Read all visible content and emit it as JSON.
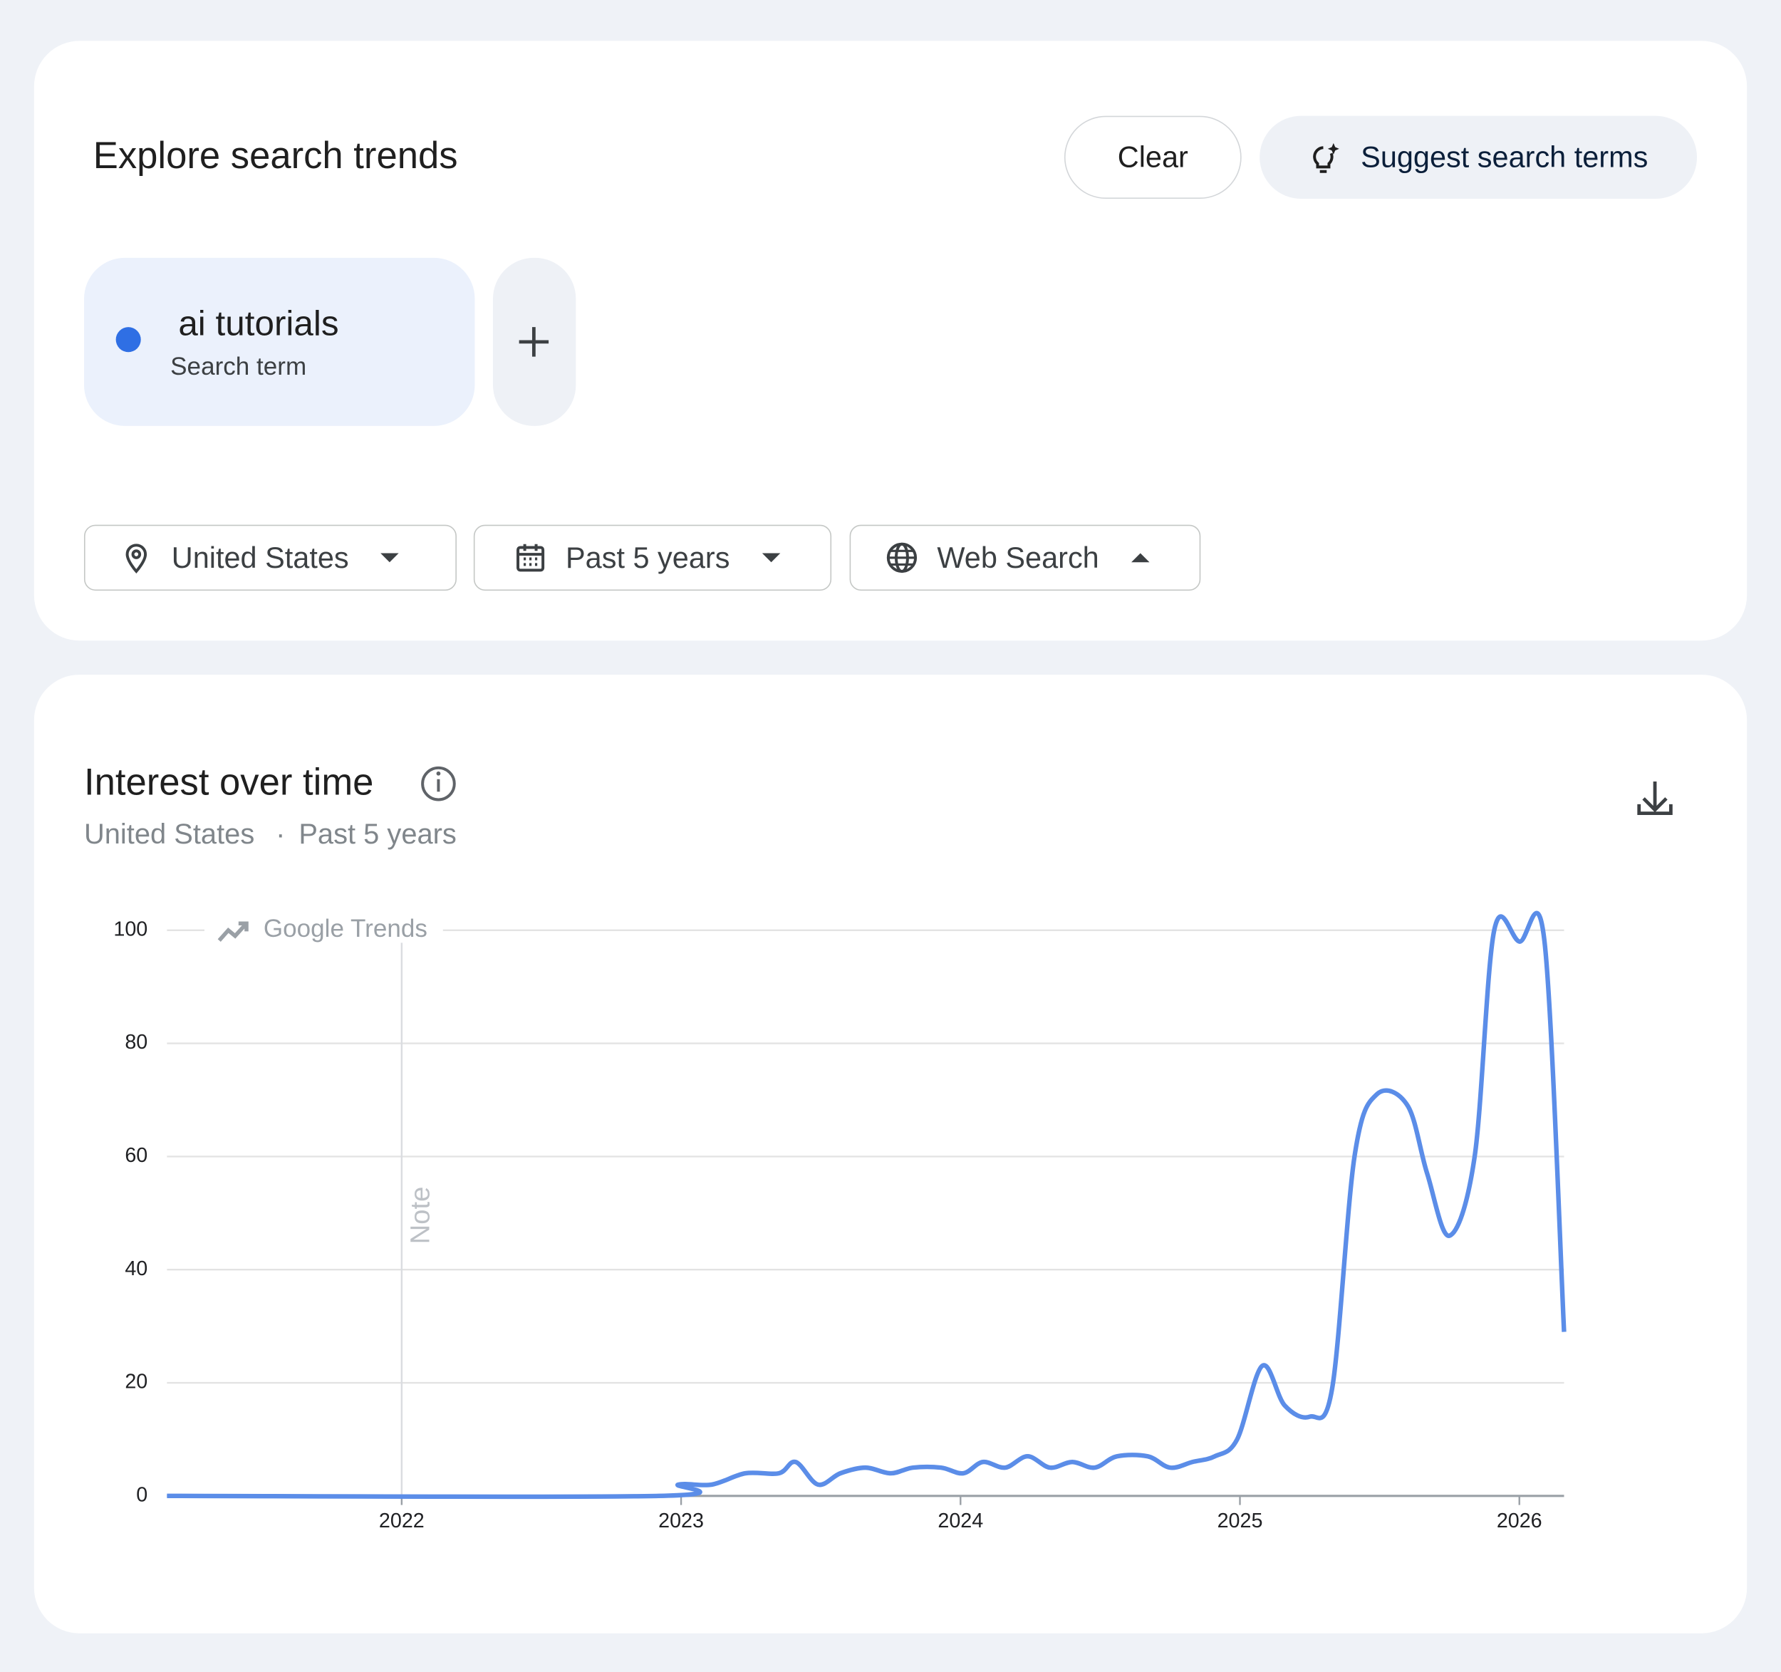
{
  "header": {
    "title": "Explore search trends",
    "clear": "Clear",
    "suggest": "Suggest search terms"
  },
  "search_terms": {
    "kind": "Search term"
  },
  "filters": {
    "location": "United States",
    "period": "Past 5 years",
    "property": "Web Search"
  },
  "chart_data": {
    "type": "line",
    "title": "Interest over time",
    "subtitle": {
      "location": "United States",
      "separator": "·",
      "period": "Past 5 years"
    },
    "watermark": "Google Trends",
    "note": {
      "x": 2022,
      "label": "Note"
    },
    "x": [
      2021.16,
      2022.92,
      2022.99,
      2023.11,
      2023.23,
      2023.35,
      2023.41,
      2023.49,
      2023.57,
      2023.66,
      2023.75,
      2023.83,
      2023.93,
      2024.01,
      2024.08,
      2024.16,
      2024.24,
      2024.32,
      2024.4,
      2024.48,
      2024.56,
      2024.67,
      2024.75,
      2024.83,
      2024.91,
      2024.99,
      2025.08,
      2025.16,
      2025.25,
      2025.33,
      2025.41,
      2025.49,
      2025.6,
      2025.67,
      2025.75,
      2025.84,
      2025.91,
      2026.0,
      2026.09,
      2026.16
    ],
    "series": [
      {
        "name": "ai tutorials",
        "color": "#5b8de8",
        "values": [
          0,
          0,
          2,
          2,
          4,
          4,
          6,
          2,
          4,
          5,
          4,
          5,
          5,
          4,
          6,
          5,
          7,
          5,
          6,
          5,
          7,
          7,
          5,
          6,
          7,
          10,
          23,
          16,
          14,
          19,
          60,
          71,
          69,
          57,
          46,
          60,
          100,
          98,
          98,
          29
        ]
      }
    ],
    "xlim": [
      2021.16,
      2026.16
    ],
    "xticks": [
      2022,
      2023,
      2024,
      2025,
      2026
    ],
    "ylim": [
      0,
      100
    ],
    "yticks": [
      0,
      20,
      40,
      60,
      80,
      100
    ],
    "grid": true
  }
}
